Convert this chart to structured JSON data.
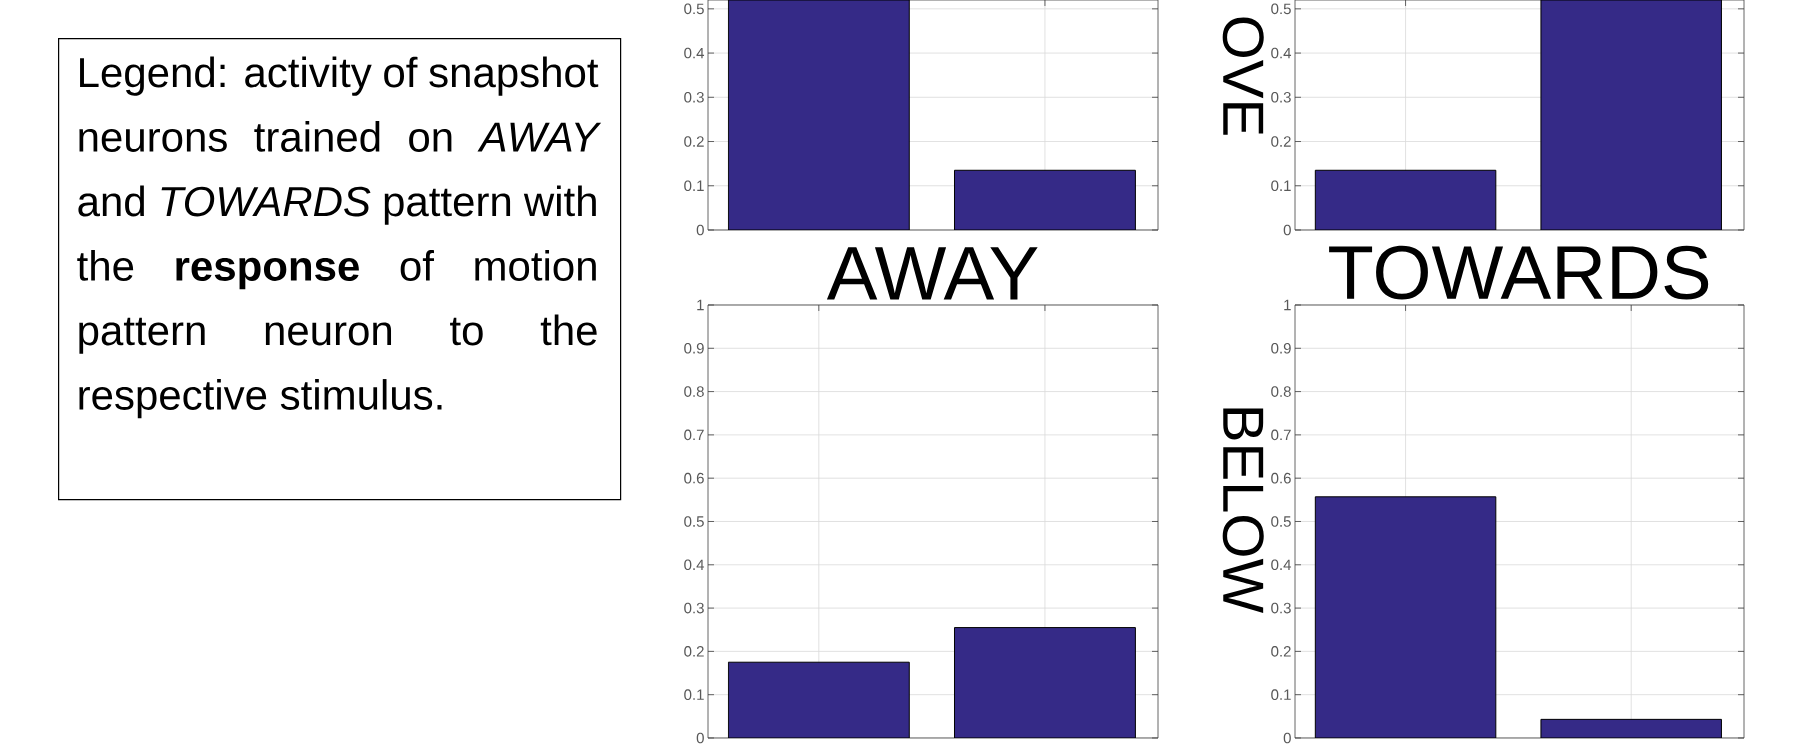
{
  "chart_data": [
    {
      "type": "other",
      "annotations": [
        "Legend: activity of snapshot neurons trained on *AWAY* and *TOWARDS* pattern with the **response** of motion pattern neuron to the respective stimulus."
      ]
    },
    {
      "type": "bar",
      "categories": [
        null,
        null
      ],
      "values": [
        0.52,
        0.135
      ],
      "color": "#352a87",
      "ylim": [
        0,
        0.52
      ],
      "yticks": [
        0,
        0.1,
        0.2,
        0.3,
        0.4,
        0.5
      ],
      "grid": true,
      "tick_labels": "y"
    },
    {
      "type": "bar",
      "categories": [
        null,
        null
      ],
      "values": [
        0.135,
        0.52
      ],
      "color": "#352a87",
      "ylim": [
        0,
        0.52
      ],
      "yticks": [
        0,
        0.1,
        0.2,
        0.3,
        0.4,
        0.5
      ],
      "grid": true,
      "tick_labels": "y",
      "ylabel": "OVE"
    },
    {
      "type": "bar",
      "title": "AWAY",
      "categories": [
        null,
        null
      ],
      "values": [
        0.175,
        0.255
      ],
      "color": "#352a87",
      "ylim": [
        0,
        1
      ],
      "yticks": [
        0,
        0.1,
        0.2,
        0.3,
        0.4,
        0.5,
        0.6,
        0.7,
        0.8,
        0.9,
        1
      ],
      "grid": true,
      "tick_labels": "y"
    },
    {
      "type": "bar",
      "title": "TOWARDS",
      "categories": [
        null,
        null
      ],
      "values": [
        0.557,
        0.043
      ],
      "color": "#352a87",
      "ylim": [
        0,
        1
      ],
      "yticks": [
        0,
        0.1,
        0.2,
        0.3,
        0.4,
        0.5,
        0.6,
        0.7,
        0.8,
        0.9,
        1
      ],
      "grid": true,
      "tick_labels": "y",
      "ylabel": "BELOW"
    }
  ]
}
